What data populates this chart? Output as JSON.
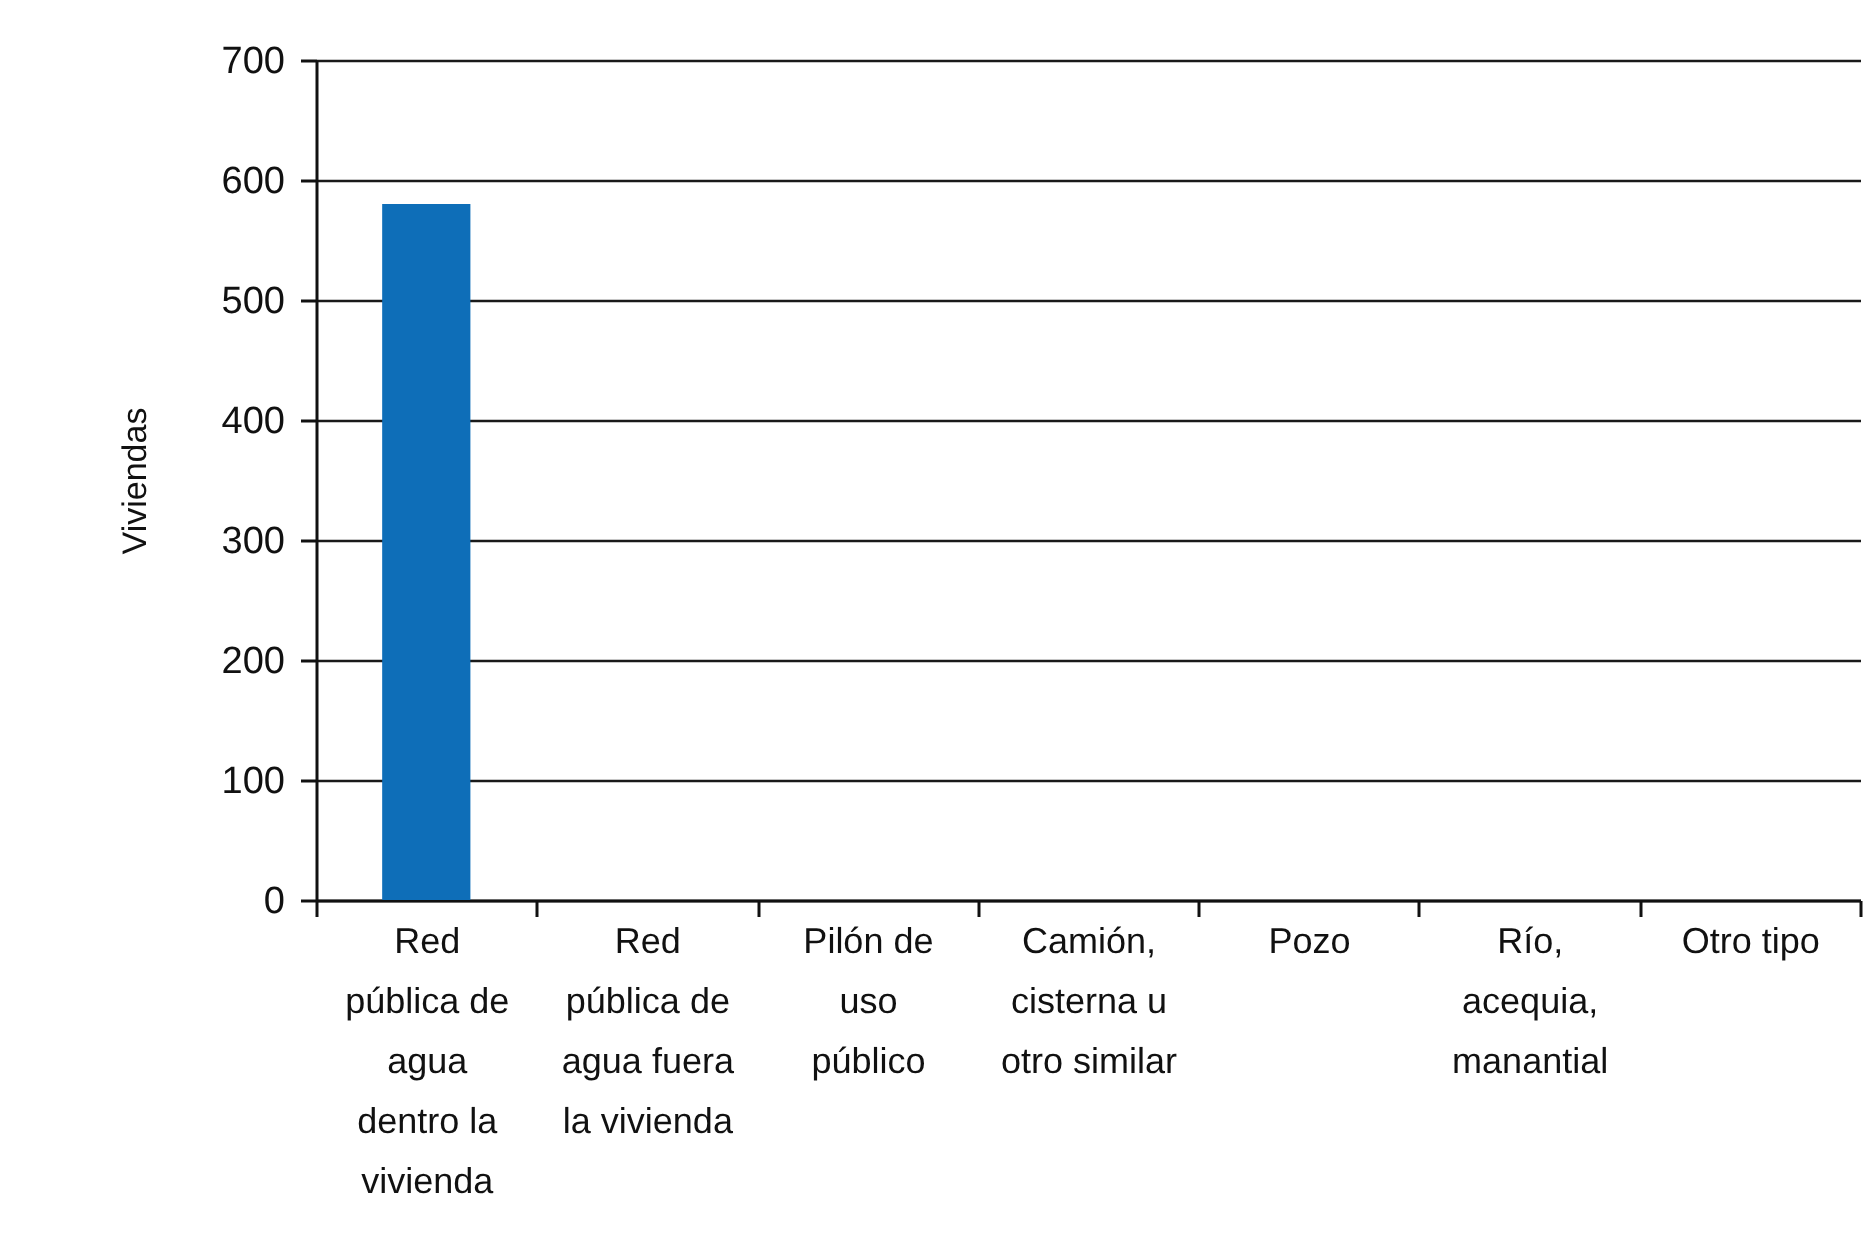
{
  "chart_data": {
    "type": "bar",
    "ylabel": "Viviendas",
    "categories": [
      "Red\npública de\nagua\ndentro la\nvivienda",
      "Red\npública de\nagua fuera\nla vivienda",
      "Pilón de\nuso\npúblico",
      "Camión,\ncisterna u\notro similar",
      "Pozo",
      "Río,\nacequia,\nmanantial",
      "Otro tipo"
    ],
    "values": [
      580,
      0,
      0,
      0,
      0,
      0,
      0
    ],
    "color": "#0e6eb8",
    "ylim": [
      0,
      700
    ],
    "yticks": [
      0,
      100,
      200,
      300,
      400,
      500,
      600,
      700
    ],
    "grid": "y"
  }
}
